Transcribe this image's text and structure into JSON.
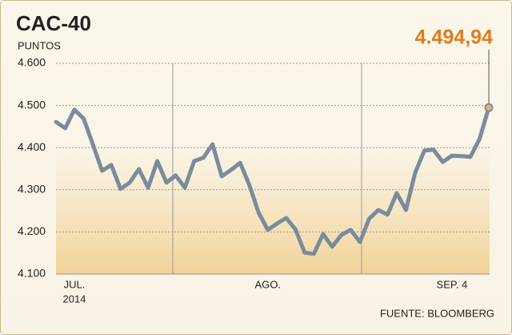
{
  "chart_data": {
    "type": "line",
    "title": "CAC-40",
    "subtitle": "PUNTOS",
    "source": "FUENTE: BLOOMBERG",
    "year": "2014",
    "categories": [
      null,
      null,
      "JUL.",
      null,
      null,
      null,
      null,
      null,
      null,
      null,
      null,
      null,
      null,
      null,
      null,
      null,
      null,
      null,
      null,
      null,
      null,
      null,
      null,
      "AGO.",
      null,
      null,
      null,
      null,
      null,
      null,
      null,
      null,
      null,
      null,
      null,
      null,
      null,
      null,
      null,
      null,
      null,
      null,
      null,
      "SEP. 4",
      null,
      null,
      null,
      null
    ],
    "series": [
      {
        "color": "#7a8c9c",
        "values": [
          4461,
          4446,
          4490,
          4469,
          4408,
          4345,
          4359,
          4302,
          4317,
          4349,
          4305,
          4368,
          4317,
          4334,
          4305,
          4368,
          4376,
          4408,
          4332,
          4347,
          4364,
          4311,
          4246,
          4205,
          4220,
          4233,
          4206,
          4151,
          4148,
          4195,
          4165,
          4193,
          4205,
          4176,
          4231,
          4252,
          4241,
          4292,
          4252,
          4340,
          4393,
          4395,
          4366,
          4381,
          4380,
          4378,
          4421,
          4494.94
        ],
        "value_labels": [
          null,
          null,
          null,
          null,
          null,
          null,
          null,
          null,
          null,
          null,
          null,
          null,
          null,
          null,
          null,
          null,
          null,
          null,
          null,
          null,
          null,
          null,
          null,
          null,
          null,
          null,
          null,
          null,
          null,
          null,
          null,
          null,
          null,
          null,
          null,
          null,
          null,
          null,
          null,
          null,
          null,
          null,
          null,
          null,
          null,
          null,
          null,
          "4.494,94"
        ],
        "label_color": "#e07b20",
        "marker_color": "#f0b070"
      }
    ],
    "ylim": [
      4100,
      4600
    ],
    "yticks": [
      {
        "value": 4100,
        "label": "4.100"
      },
      {
        "value": 4200,
        "label": "4.200"
      },
      {
        "value": 4300,
        "label": "4.300"
      },
      {
        "value": 4400,
        "label": "4.400"
      },
      {
        "value": 4500,
        "label": "4.500"
      },
      {
        "value": 4600,
        "label": "4.600"
      }
    ],
    "grid": true
  }
}
